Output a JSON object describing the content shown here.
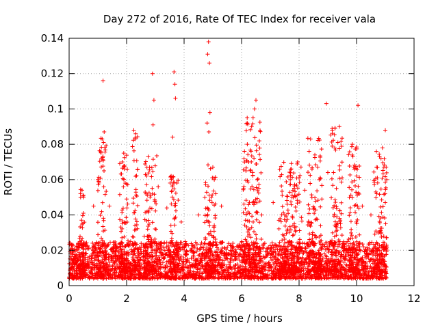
{
  "chart_data": {
    "type": "scatter",
    "title": "Day 272 of 2016, Rate Of TEC Index for receiver vala",
    "xlabel": "GPS time / hours",
    "ylabel": "ROTI / TECUs",
    "xlim": [
      0,
      12
    ],
    "ylim": [
      0,
      0.14
    ],
    "xticks": [
      0,
      2,
      4,
      6,
      8,
      10,
      12
    ],
    "xtick_labels": [
      "0",
      "2",
      "4",
      "6",
      "8",
      "10",
      "12"
    ],
    "yticks": [
      0,
      0.02,
      0.04,
      0.06,
      0.08,
      0.1,
      0.12,
      0.14
    ],
    "ytick_labels": [
      "0",
      "0.02",
      "0.04",
      "0.06",
      "0.08",
      "0.1",
      "0.12",
      "0.14"
    ],
    "grid": true,
    "marker": "+",
    "color": "#ff0000",
    "series": [
      {
        "name": "ROTI",
        "points": [
          [
            1.18,
            0.116
          ],
          [
            1.15,
            0.083
          ],
          [
            1.2,
            0.081
          ],
          [
            1.12,
            0.072
          ],
          [
            1.22,
            0.087
          ],
          [
            2.25,
            0.088
          ],
          [
            2.3,
            0.083
          ],
          [
            2.9,
            0.12
          ],
          [
            2.95,
            0.105
          ],
          [
            2.92,
            0.091
          ],
          [
            3.65,
            0.121
          ],
          [
            3.68,
            0.114
          ],
          [
            3.7,
            0.106
          ],
          [
            3.6,
            0.084
          ],
          [
            4.85,
            0.138
          ],
          [
            4.82,
            0.131
          ],
          [
            4.88,
            0.126
          ],
          [
            4.9,
            0.098
          ],
          [
            4.8,
            0.092
          ],
          [
            4.86,
            0.087
          ],
          [
            6.5,
            0.105
          ],
          [
            6.45,
            0.1
          ],
          [
            6.4,
            0.095
          ],
          [
            6.35,
            0.09
          ],
          [
            6.2,
            0.08
          ],
          [
            6.1,
            0.076
          ],
          [
            8.95,
            0.103
          ],
          [
            8.4,
            0.083
          ],
          [
            9.4,
            0.09
          ],
          [
            9.35,
            0.081
          ],
          [
            9.85,
            0.08
          ],
          [
            10.05,
            0.102
          ],
          [
            10.9,
            0.078
          ],
          [
            11.0,
            0.088
          ],
          [
            10.85,
            0.072
          ],
          [
            0.45,
            0.054
          ],
          [
            0.4,
            0.05
          ],
          [
            0.85,
            0.045
          ],
          [
            1.0,
            0.06
          ],
          [
            1.4,
            0.045
          ],
          [
            1.9,
            0.075
          ],
          [
            1.85,
            0.07
          ],
          [
            1.95,
            0.058
          ],
          [
            2.0,
            0.049
          ],
          [
            2.75,
            0.073
          ],
          [
            2.7,
            0.062
          ],
          [
            2.8,
            0.067
          ],
          [
            3.1,
            0.056
          ],
          [
            3.4,
            0.044
          ],
          [
            3.55,
            0.062
          ],
          [
            3.75,
            0.058
          ],
          [
            3.9,
            0.036
          ],
          [
            4.5,
            0.04
          ],
          [
            5.0,
            0.067
          ],
          [
            5.05,
            0.06
          ],
          [
            5.1,
            0.052
          ],
          [
            5.3,
            0.045
          ],
          [
            6.25,
            0.07
          ],
          [
            6.3,
            0.065
          ],
          [
            6.55,
            0.06
          ],
          [
            6.6,
            0.055
          ],
          [
            6.7,
            0.04
          ],
          [
            7.1,
            0.047
          ],
          [
            7.5,
            0.04
          ],
          [
            7.8,
            0.05
          ],
          [
            7.95,
            0.07
          ],
          [
            8.0,
            0.061
          ],
          [
            8.2,
            0.054
          ],
          [
            8.35,
            0.076
          ],
          [
            8.45,
            0.066
          ],
          [
            8.65,
            0.067
          ],
          [
            8.7,
            0.06
          ],
          [
            9.0,
            0.064
          ],
          [
            9.2,
            0.064
          ],
          [
            9.3,
            0.055
          ],
          [
            9.5,
            0.061
          ],
          [
            9.75,
            0.05
          ],
          [
            9.9,
            0.067
          ],
          [
            10.0,
            0.062
          ],
          [
            10.2,
            0.045
          ],
          [
            10.5,
            0.04
          ],
          [
            10.7,
            0.052
          ],
          [
            10.95,
            0.067
          ],
          [
            11.05,
            0.06
          ],
          [
            11.0,
            0.047
          ]
        ]
      }
    ],
    "dense_band": {
      "description_values": "dense background scatter of ROTI values across the full time range",
      "x_range": [
        0.0,
        11.05
      ],
      "typical_range": [
        0.004,
        0.025
      ],
      "active_windows": [
        [
          0.35,
          0.55,
          0.055
        ],
        [
          1.0,
          1.3,
          0.09
        ],
        [
          1.75,
          2.05,
          0.075
        ],
        [
          2.2,
          2.4,
          0.09
        ],
        [
          2.6,
          3.05,
          0.075
        ],
        [
          3.5,
          3.8,
          0.065
        ],
        [
          4.7,
          5.1,
          0.07
        ],
        [
          6.05,
          6.7,
          0.1
        ],
        [
          7.3,
          8.1,
          0.07
        ],
        [
          8.3,
          8.8,
          0.085
        ],
        [
          9.1,
          9.5,
          0.09
        ],
        [
          9.7,
          10.1,
          0.08
        ],
        [
          10.6,
          11.05,
          0.08
        ]
      ]
    }
  }
}
